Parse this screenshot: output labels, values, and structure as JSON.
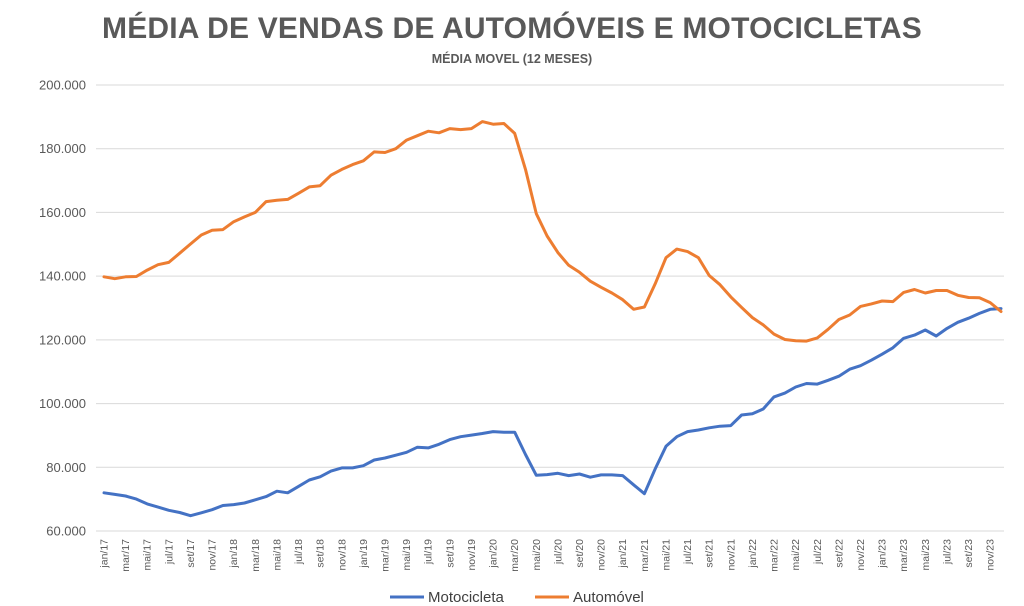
{
  "chart_data": {
    "type": "line",
    "title": "MÉDIA DE VENDAS DE AUTOMÓVEIS E MOTOCICLETAS",
    "subtitle": "MÉDIA MOVEL (12 MESES)",
    "ylim": [
      60000,
      200000
    ],
    "yticks": [
      "60.000",
      "80.000",
      "100.000",
      "120.000",
      "140.000",
      "160.000",
      "180.000",
      "200.000"
    ],
    "ytick_values": [
      60000,
      80000,
      100000,
      120000,
      140000,
      160000,
      180000,
      200000
    ],
    "grid": true,
    "legend_position": "bottom",
    "x": [
      "jan/17",
      "fev/17",
      "mar/17",
      "abr/17",
      "mai/17",
      "jun/17",
      "jul/17",
      "ago/17",
      "set/17",
      "out/17",
      "nov/17",
      "dez/17",
      "jan/18",
      "fev/18",
      "mar/18",
      "abr/18",
      "mai/18",
      "jun/18",
      "jul/18",
      "ago/18",
      "set/18",
      "out/18",
      "nov/18",
      "dez/18",
      "jan/19",
      "fev/19",
      "mar/19",
      "abr/19",
      "mai/19",
      "jun/19",
      "jul/19",
      "ago/19",
      "set/19",
      "out/19",
      "nov/19",
      "dez/19",
      "jan/20",
      "fev/20",
      "mar/20",
      "abr/20",
      "mai/20",
      "jun/20",
      "jul/20",
      "ago/20",
      "set/20",
      "out/20",
      "nov/20",
      "dez/20",
      "jan/21",
      "fev/21",
      "mar/21",
      "abr/21",
      "mai/21",
      "jun/21",
      "jul/21",
      "ago/21",
      "set/21",
      "out/21",
      "nov/21",
      "dez/21",
      "jan/22",
      "fev/22",
      "mar/22",
      "abr/22",
      "mai/22",
      "jun/22",
      "jul/22",
      "ago/22",
      "set/22",
      "out/22",
      "nov/22",
      "dez/22",
      "jan/23",
      "fev/23",
      "mar/23",
      "abr/23",
      "mai/23",
      "jun/23",
      "jul/23",
      "ago/23",
      "set/23",
      "out/23",
      "nov/23",
      "dez/23"
    ],
    "x_tick_labels": [
      "jan/17",
      "mar/17",
      "mai/17",
      "jul/17",
      "set/17",
      "nov/17",
      "jan/18",
      "mar/18",
      "mai/18",
      "jul/18",
      "set/18",
      "nov/18",
      "jan/19",
      "mar/19",
      "mai/19",
      "jul/19",
      "set/19",
      "nov/19",
      "jan/20",
      "mar/20",
      "mai/20",
      "jul/20",
      "set/20",
      "nov/20",
      "jan/21",
      "mar/21",
      "mai/21",
      "jul/21",
      "set/21",
      "nov/21",
      "jan/22",
      "mar/22",
      "mai/22",
      "jul/22",
      "set/22",
      "nov/22",
      "jan/23",
      "mar/23",
      "mai/23",
      "jul/23",
      "set/23",
      "nov/23"
    ],
    "series": [
      {
        "name": "Motocicleta",
        "color": "#4472C4",
        "values": [
          72000,
          71500,
          71000,
          70000,
          68500,
          67500,
          66500,
          65800,
          64800,
          65700,
          66700,
          68000,
          68300,
          68800,
          69800,
          70800,
          72500,
          72000,
          74000,
          76000,
          77000,
          78800,
          79800,
          79800,
          80500,
          82300,
          82900,
          83800,
          84700,
          86300,
          86100,
          87200,
          88700,
          89600,
          90100,
          90600,
          91200,
          91000,
          91000,
          84000,
          77500,
          77700,
          78100,
          77400,
          77900,
          76900,
          77600,
          77600,
          77400,
          74500,
          71700,
          79500,
          86600,
          89600,
          91200,
          91700,
          92400,
          92900,
          93100,
          96400,
          96800,
          98300,
          102100,
          103300,
          105200,
          106300,
          106100,
          107300,
          108600,
          110800,
          111900,
          113600,
          115500,
          117500,
          120500,
          121500,
          123100,
          121200,
          123600,
          125500,
          126800,
          128300,
          129600,
          129800
        ]
      },
      {
        "name": "Automóvel",
        "color": "#ED7D31",
        "values": [
          139800,
          139200,
          139800,
          139900,
          141900,
          143600,
          144300,
          147200,
          150100,
          152900,
          154400,
          154600,
          157100,
          158600,
          160000,
          163400,
          163800,
          164100,
          166000,
          168000,
          168400,
          171700,
          173500,
          175000,
          176200,
          179000,
          178800,
          180000,
          182700,
          184100,
          185500,
          185000,
          186300,
          186000,
          186300,
          188500,
          187700,
          187900,
          184800,
          173500,
          159600,
          152600,
          147400,
          143400,
          141200,
          138400,
          136500,
          134700,
          132600,
          129600,
          130300,
          137600,
          145800,
          148500,
          147700,
          145800,
          140200,
          137300,
          133500,
          130200,
          127000,
          124700,
          121800,
          120100,
          119700,
          119600,
          120600,
          123300,
          126400,
          127800,
          130500,
          131300,
          132200,
          132000,
          134900,
          135800,
          134700,
          135500,
          135500,
          134000,
          133300,
          133200,
          131700,
          128900
        ]
      }
    ]
  }
}
